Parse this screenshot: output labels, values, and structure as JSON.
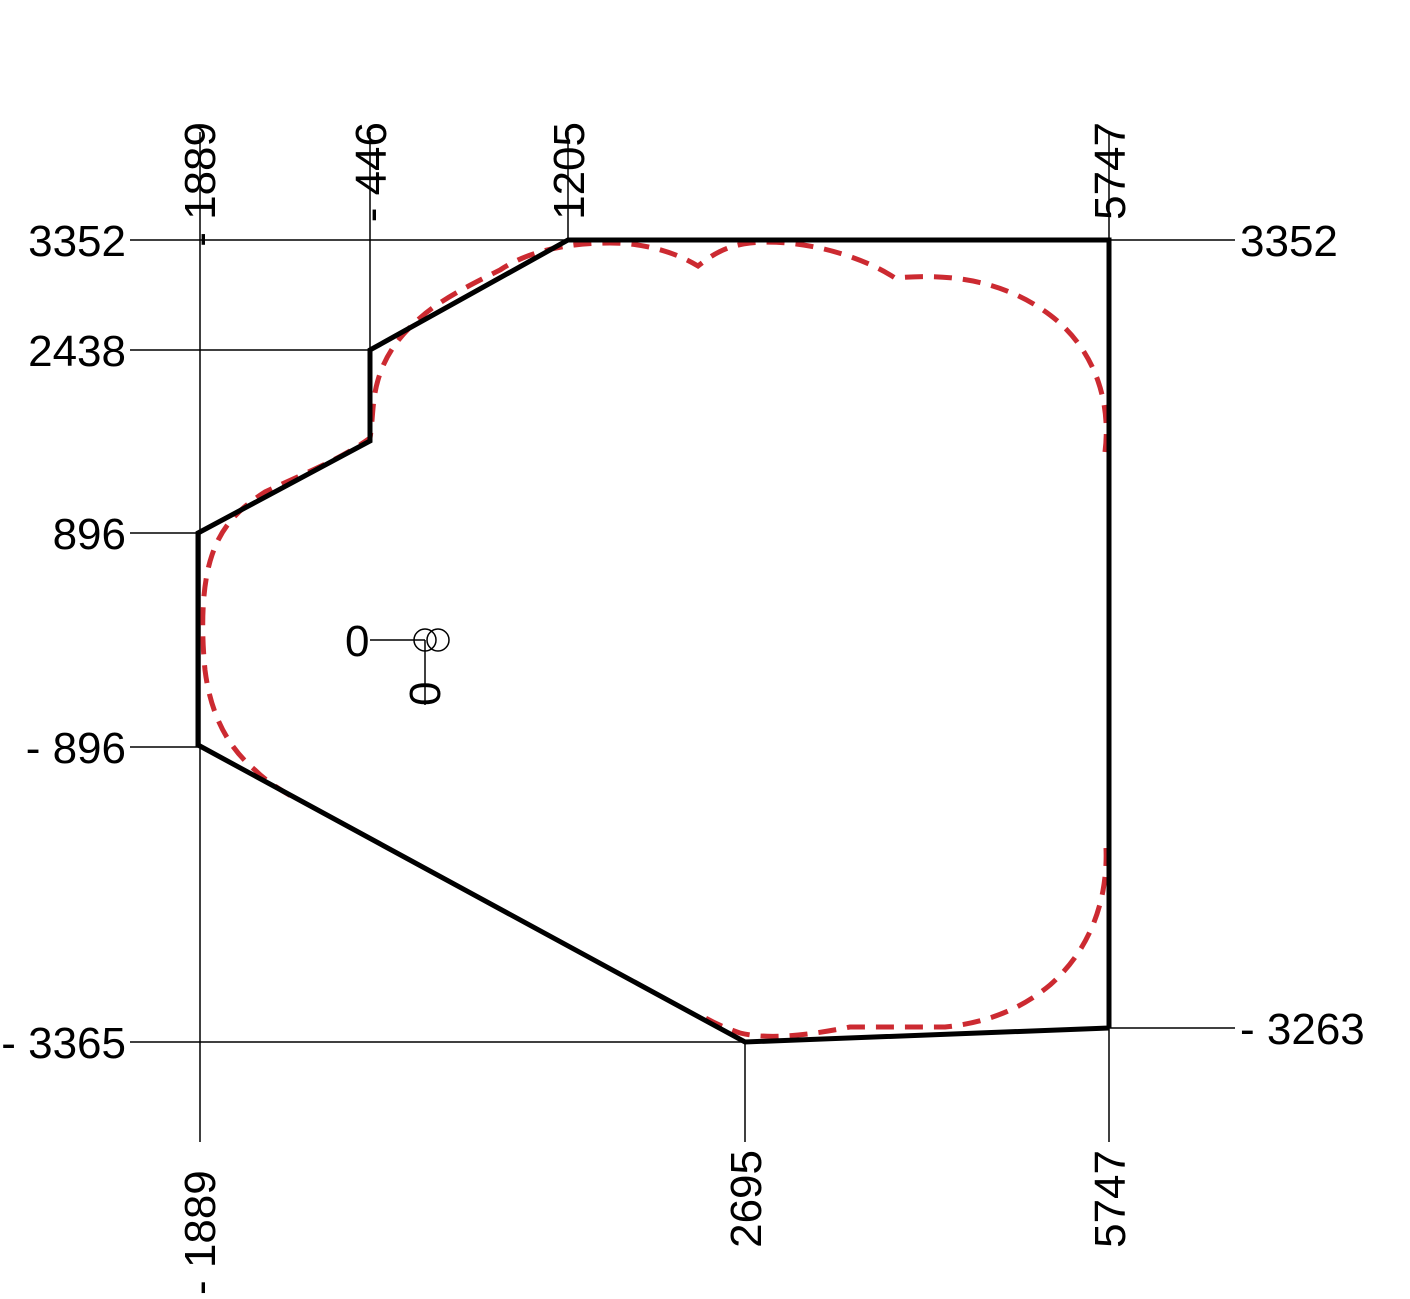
{
  "diagram": {
    "colors": {
      "outline": "#000000",
      "envelope": "#cc2a31"
    },
    "top_labels": [
      "- 1889",
      "- 446",
      "1205",
      "5747"
    ],
    "bottom_labels": [
      "- 1889",
      "2695",
      "5747"
    ],
    "left_labels": [
      "3352",
      "2438",
      "896",
      "- 896",
      "- 3365"
    ],
    "right_labels": [
      "3352",
      "- 3263"
    ],
    "origin": {
      "x_label": "0",
      "y_label": "0"
    }
  }
}
